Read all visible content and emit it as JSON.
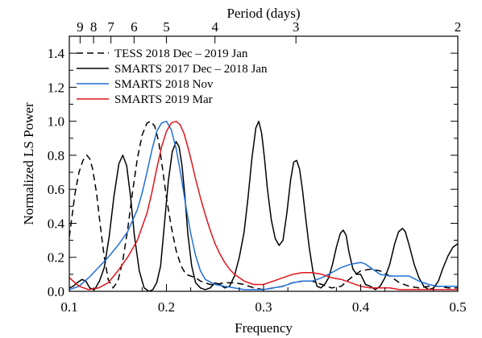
{
  "chart_data": {
    "type": "line",
    "xlabel": "Frequency",
    "ylabel": "Normalized LS Power",
    "top_axis_label": "Period (days)",
    "xlim": [
      0.1,
      0.5
    ],
    "ylim": [
      0.0,
      1.5
    ],
    "x_ticks": [
      0.1,
      0.2,
      0.3,
      0.4,
      0.5
    ],
    "x_tick_labels": [
      "0.1",
      "0.2",
      "0.3",
      "0.4",
      "0.5"
    ],
    "y_ticks": [
      0.0,
      0.2,
      0.4,
      0.6,
      0.8,
      1.0,
      1.2,
      1.4
    ],
    "y_tick_labels": [
      "0.0",
      "0.2",
      "0.4",
      "0.6",
      "0.8",
      "1.0",
      "1.2",
      "1.4"
    ],
    "period_ticks": [
      9,
      8,
      7,
      6,
      5,
      4,
      3,
      2
    ],
    "period_tick_labels": [
      "9",
      "8",
      "7",
      "6",
      "5",
      "4",
      "3",
      "2"
    ],
    "grid": false,
    "legend_position": "top-left",
    "series": [
      {
        "name": "TESS 2018 Dec – 2019 Jan",
        "color": "#000000",
        "dash": "dashed",
        "x": [
          0.1,
          0.103,
          0.106,
          0.11,
          0.114,
          0.118,
          0.121,
          0.124,
          0.128,
          0.132,
          0.136,
          0.14,
          0.145,
          0.15,
          0.155,
          0.16,
          0.165,
          0.17,
          0.175,
          0.18,
          0.184,
          0.188,
          0.192,
          0.196,
          0.2,
          0.205,
          0.21,
          0.215,
          0.22,
          0.225,
          0.23,
          0.235,
          0.24,
          0.245,
          0.25,
          0.26,
          0.27,
          0.28,
          0.29,
          0.3,
          0.31,
          0.32,
          0.33,
          0.34,
          0.35,
          0.36,
          0.37,
          0.38,
          0.39,
          0.4,
          0.41,
          0.42,
          0.43,
          0.44,
          0.45,
          0.46,
          0.47,
          0.48,
          0.49,
          0.5
        ],
        "y": [
          0.32,
          0.45,
          0.58,
          0.7,
          0.77,
          0.8,
          0.78,
          0.72,
          0.58,
          0.38,
          0.2,
          0.07,
          0.02,
          0.06,
          0.18,
          0.36,
          0.58,
          0.78,
          0.92,
          0.99,
          1.0,
          0.97,
          0.88,
          0.72,
          0.55,
          0.38,
          0.24,
          0.15,
          0.1,
          0.09,
          0.08,
          0.06,
          0.05,
          0.04,
          0.04,
          0.05,
          0.05,
          0.04,
          0.02,
          0.01,
          0.02,
          0.03,
          0.05,
          0.06,
          0.06,
          0.04,
          0.02,
          0.03,
          0.08,
          0.12,
          0.13,
          0.12,
          0.09,
          0.05,
          0.03,
          0.02,
          0.03,
          0.03,
          0.02,
          0.02
        ]
      },
      {
        "name": "SMARTS 2017 Dec – 2018 Jan",
        "color": "#000000",
        "dash": "solid",
        "x": [
          0.1,
          0.104,
          0.108,
          0.113,
          0.117,
          0.121,
          0.126,
          0.131,
          0.136,
          0.141,
          0.146,
          0.151,
          0.155,
          0.159,
          0.163,
          0.167,
          0.172,
          0.177,
          0.182,
          0.186,
          0.19,
          0.194,
          0.198,
          0.202,
          0.206,
          0.21,
          0.213,
          0.216,
          0.219,
          0.222,
          0.226,
          0.23,
          0.235,
          0.24,
          0.245,
          0.25,
          0.255,
          0.26,
          0.265,
          0.27,
          0.275,
          0.28,
          0.284,
          0.288,
          0.292,
          0.295,
          0.298,
          0.301,
          0.304,
          0.308,
          0.312,
          0.316,
          0.32,
          0.324,
          0.328,
          0.331,
          0.334,
          0.337,
          0.34,
          0.343,
          0.347,
          0.351,
          0.355,
          0.359,
          0.363,
          0.367,
          0.371,
          0.375,
          0.379,
          0.382,
          0.385,
          0.388,
          0.392,
          0.396,
          0.4,
          0.405,
          0.41,
          0.415,
          0.42,
          0.425,
          0.43,
          0.435,
          0.439,
          0.443,
          0.446,
          0.45,
          0.455,
          0.46,
          0.465,
          0.47,
          0.475,
          0.48,
          0.485,
          0.49,
          0.495,
          0.5
        ],
        "y": [
          0.02,
          0.03,
          0.05,
          0.07,
          0.06,
          0.02,
          0.01,
          0.06,
          0.14,
          0.32,
          0.56,
          0.75,
          0.8,
          0.74,
          0.56,
          0.33,
          0.12,
          0.02,
          0.0,
          0.01,
          0.05,
          0.15,
          0.4,
          0.65,
          0.82,
          0.88,
          0.85,
          0.74,
          0.56,
          0.34,
          0.15,
          0.05,
          0.02,
          0.01,
          0.02,
          0.05,
          0.04,
          0.02,
          0.03,
          0.09,
          0.2,
          0.35,
          0.55,
          0.78,
          0.96,
          1.0,
          0.93,
          0.78,
          0.6,
          0.42,
          0.31,
          0.27,
          0.3,
          0.46,
          0.66,
          0.76,
          0.77,
          0.72,
          0.6,
          0.45,
          0.26,
          0.11,
          0.03,
          0.02,
          0.04,
          0.08,
          0.16,
          0.26,
          0.34,
          0.36,
          0.33,
          0.23,
          0.13,
          0.1,
          0.1,
          0.04,
          0.03,
          0.01,
          0.03,
          0.08,
          0.16,
          0.28,
          0.35,
          0.37,
          0.35,
          0.27,
          0.16,
          0.08,
          0.03,
          0.01,
          0.02,
          0.06,
          0.14,
          0.21,
          0.26,
          0.28
        ]
      },
      {
        "name": "SMARTS 2018 Nov",
        "color": "#1f6fd6",
        "dash": "solid",
        "x": [
          0.1,
          0.11,
          0.12,
          0.13,
          0.14,
          0.15,
          0.16,
          0.17,
          0.175,
          0.18,
          0.185,
          0.19,
          0.195,
          0.2,
          0.205,
          0.21,
          0.215,
          0.22,
          0.225,
          0.23,
          0.235,
          0.24,
          0.25,
          0.26,
          0.27,
          0.28,
          0.29,
          0.3,
          0.31,
          0.32,
          0.33,
          0.34,
          0.35,
          0.36,
          0.37,
          0.38,
          0.39,
          0.4,
          0.405,
          0.41,
          0.42,
          0.43,
          0.44,
          0.45,
          0.46,
          0.47,
          0.48,
          0.49,
          0.5
        ],
        "y": [
          0.01,
          0.03,
          0.08,
          0.14,
          0.2,
          0.27,
          0.35,
          0.48,
          0.58,
          0.7,
          0.83,
          0.94,
          0.99,
          1.0,
          0.95,
          0.84,
          0.68,
          0.5,
          0.34,
          0.21,
          0.12,
          0.07,
          0.04,
          0.03,
          0.02,
          0.01,
          0.01,
          0.01,
          0.02,
          0.03,
          0.05,
          0.06,
          0.06,
          0.08,
          0.11,
          0.14,
          0.16,
          0.17,
          0.16,
          0.14,
          0.1,
          0.09,
          0.09,
          0.09,
          0.06,
          0.04,
          0.03,
          0.03,
          0.03
        ]
      },
      {
        "name": "SMARTS 2019 Mar",
        "color": "#e0141c",
        "dash": "solid",
        "x": [
          0.1,
          0.11,
          0.12,
          0.13,
          0.14,
          0.15,
          0.16,
          0.17,
          0.18,
          0.185,
          0.19,
          0.195,
          0.2,
          0.205,
          0.21,
          0.214,
          0.218,
          0.222,
          0.226,
          0.23,
          0.235,
          0.24,
          0.245,
          0.25,
          0.255,
          0.26,
          0.265,
          0.27,
          0.28,
          0.29,
          0.3,
          0.31,
          0.32,
          0.33,
          0.34,
          0.35,
          0.36,
          0.37,
          0.38,
          0.39,
          0.4,
          0.41,
          0.42,
          0.43,
          0.44,
          0.45,
          0.46,
          0.47,
          0.48,
          0.49,
          0.5
        ],
        "y": [
          0.08,
          0.03,
          0.01,
          0.02,
          0.05,
          0.12,
          0.2,
          0.3,
          0.46,
          0.58,
          0.72,
          0.85,
          0.94,
          0.99,
          1.0,
          0.98,
          0.93,
          0.85,
          0.76,
          0.66,
          0.55,
          0.45,
          0.36,
          0.28,
          0.22,
          0.17,
          0.13,
          0.1,
          0.06,
          0.04,
          0.04,
          0.06,
          0.08,
          0.1,
          0.11,
          0.11,
          0.1,
          0.08,
          0.07,
          0.05,
          0.03,
          0.02,
          0.02,
          0.02,
          0.01,
          0.01,
          0.01,
          0.01,
          0.01,
          0.01,
          0.01
        ]
      }
    ]
  }
}
